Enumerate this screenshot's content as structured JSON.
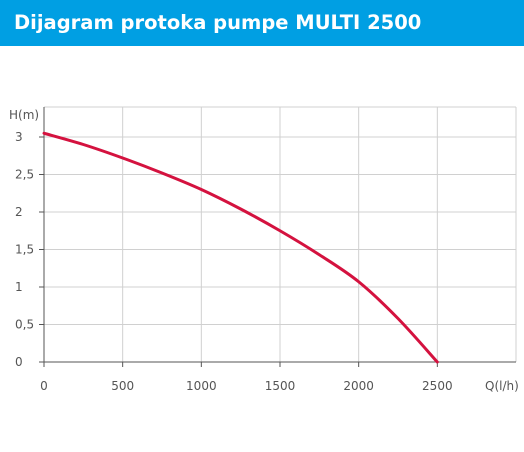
{
  "header": {
    "title": "Dijagram protoka pumpe MULTI 2500"
  },
  "colors": {
    "title_bar": "#009fe3",
    "title_text": "#ffffff",
    "curve": "#d4123f",
    "grid": "#d0d0d0",
    "axis": "#555555"
  },
  "chart_data": {
    "type": "line",
    "title": "",
    "xlabel": "Q(l/h)",
    "ylabel": "H(m)",
    "xlim": [
      0,
      3000
    ],
    "ylim": [
      0,
      3.4
    ],
    "xticks": [
      0,
      500,
      1000,
      1500,
      2000,
      2500
    ],
    "xtick_labels": [
      "0",
      "500",
      "1000",
      "1500",
      "2000",
      "2500"
    ],
    "yticks": [
      0,
      0.5,
      1,
      1.5,
      2,
      2.5,
      3
    ],
    "ytick_labels": [
      "0",
      "0,5",
      "1",
      "1,5",
      "2",
      "2,5",
      "3"
    ],
    "grid": true,
    "series": [
      {
        "x": [
          0,
          250,
          500,
          750,
          1000,
          1250,
          1500,
          1750,
          2000,
          2250,
          2500
        ],
        "y": [
          3.05,
          2.9,
          2.72,
          2.52,
          2.3,
          2.04,
          1.75,
          1.43,
          1.07,
          0.58,
          0.0
        ]
      }
    ]
  }
}
